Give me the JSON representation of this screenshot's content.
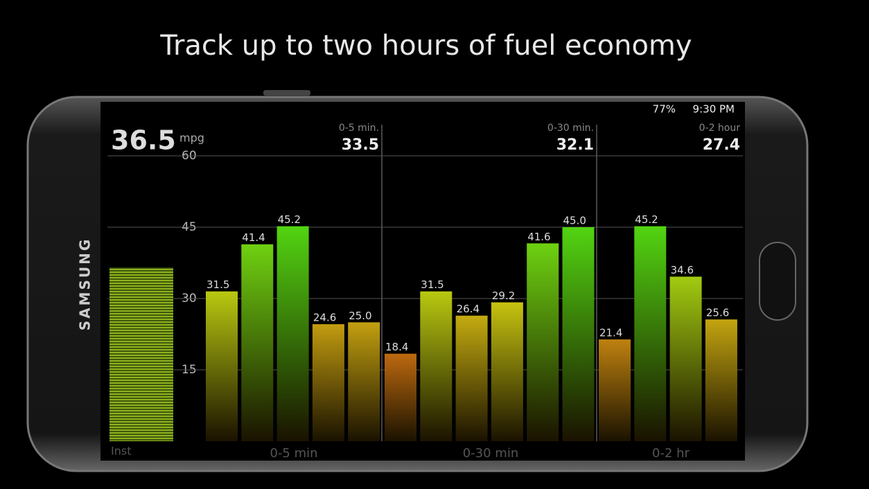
{
  "title": "Track up to two hours of fuel economy",
  "status_bar": {
    "battery": "77%",
    "time": "9:30 PM"
  },
  "brand": "SAMSUNG",
  "chart_data": {
    "type": "bar",
    "instant": {
      "value": 36.5,
      "unit": "mpg",
      "label": "Inst"
    },
    "ylim": [
      0,
      60
    ],
    "yticks": [
      15,
      30,
      45,
      60
    ],
    "grid": true,
    "groups": [
      {
        "header": "0-5 min.",
        "average": 33.5,
        "label": "0-5 min",
        "values": [
          31.5,
          41.4,
          45.2,
          24.6,
          25.0
        ],
        "value_labels": [
          "31.5",
          "41.4",
          "45.2",
          "24.6",
          "25.0"
        ]
      },
      {
        "header": "0-30 min.",
        "average": 32.1,
        "label": "0-30 min",
        "values": [
          18.4,
          31.5,
          26.4,
          29.2,
          41.6,
          45.0
        ],
        "value_labels": [
          "18.4",
          "31.5",
          "26.4",
          "29.2",
          "41.6",
          "45.0"
        ]
      },
      {
        "header": "0-2 hour",
        "average": 27.4,
        "label": "0-2 hr",
        "values": [
          21.4,
          45.2,
          34.6,
          25.6
        ],
        "value_labels": [
          "21.4",
          "45.2",
          "34.6",
          "25.6"
        ]
      }
    ]
  }
}
